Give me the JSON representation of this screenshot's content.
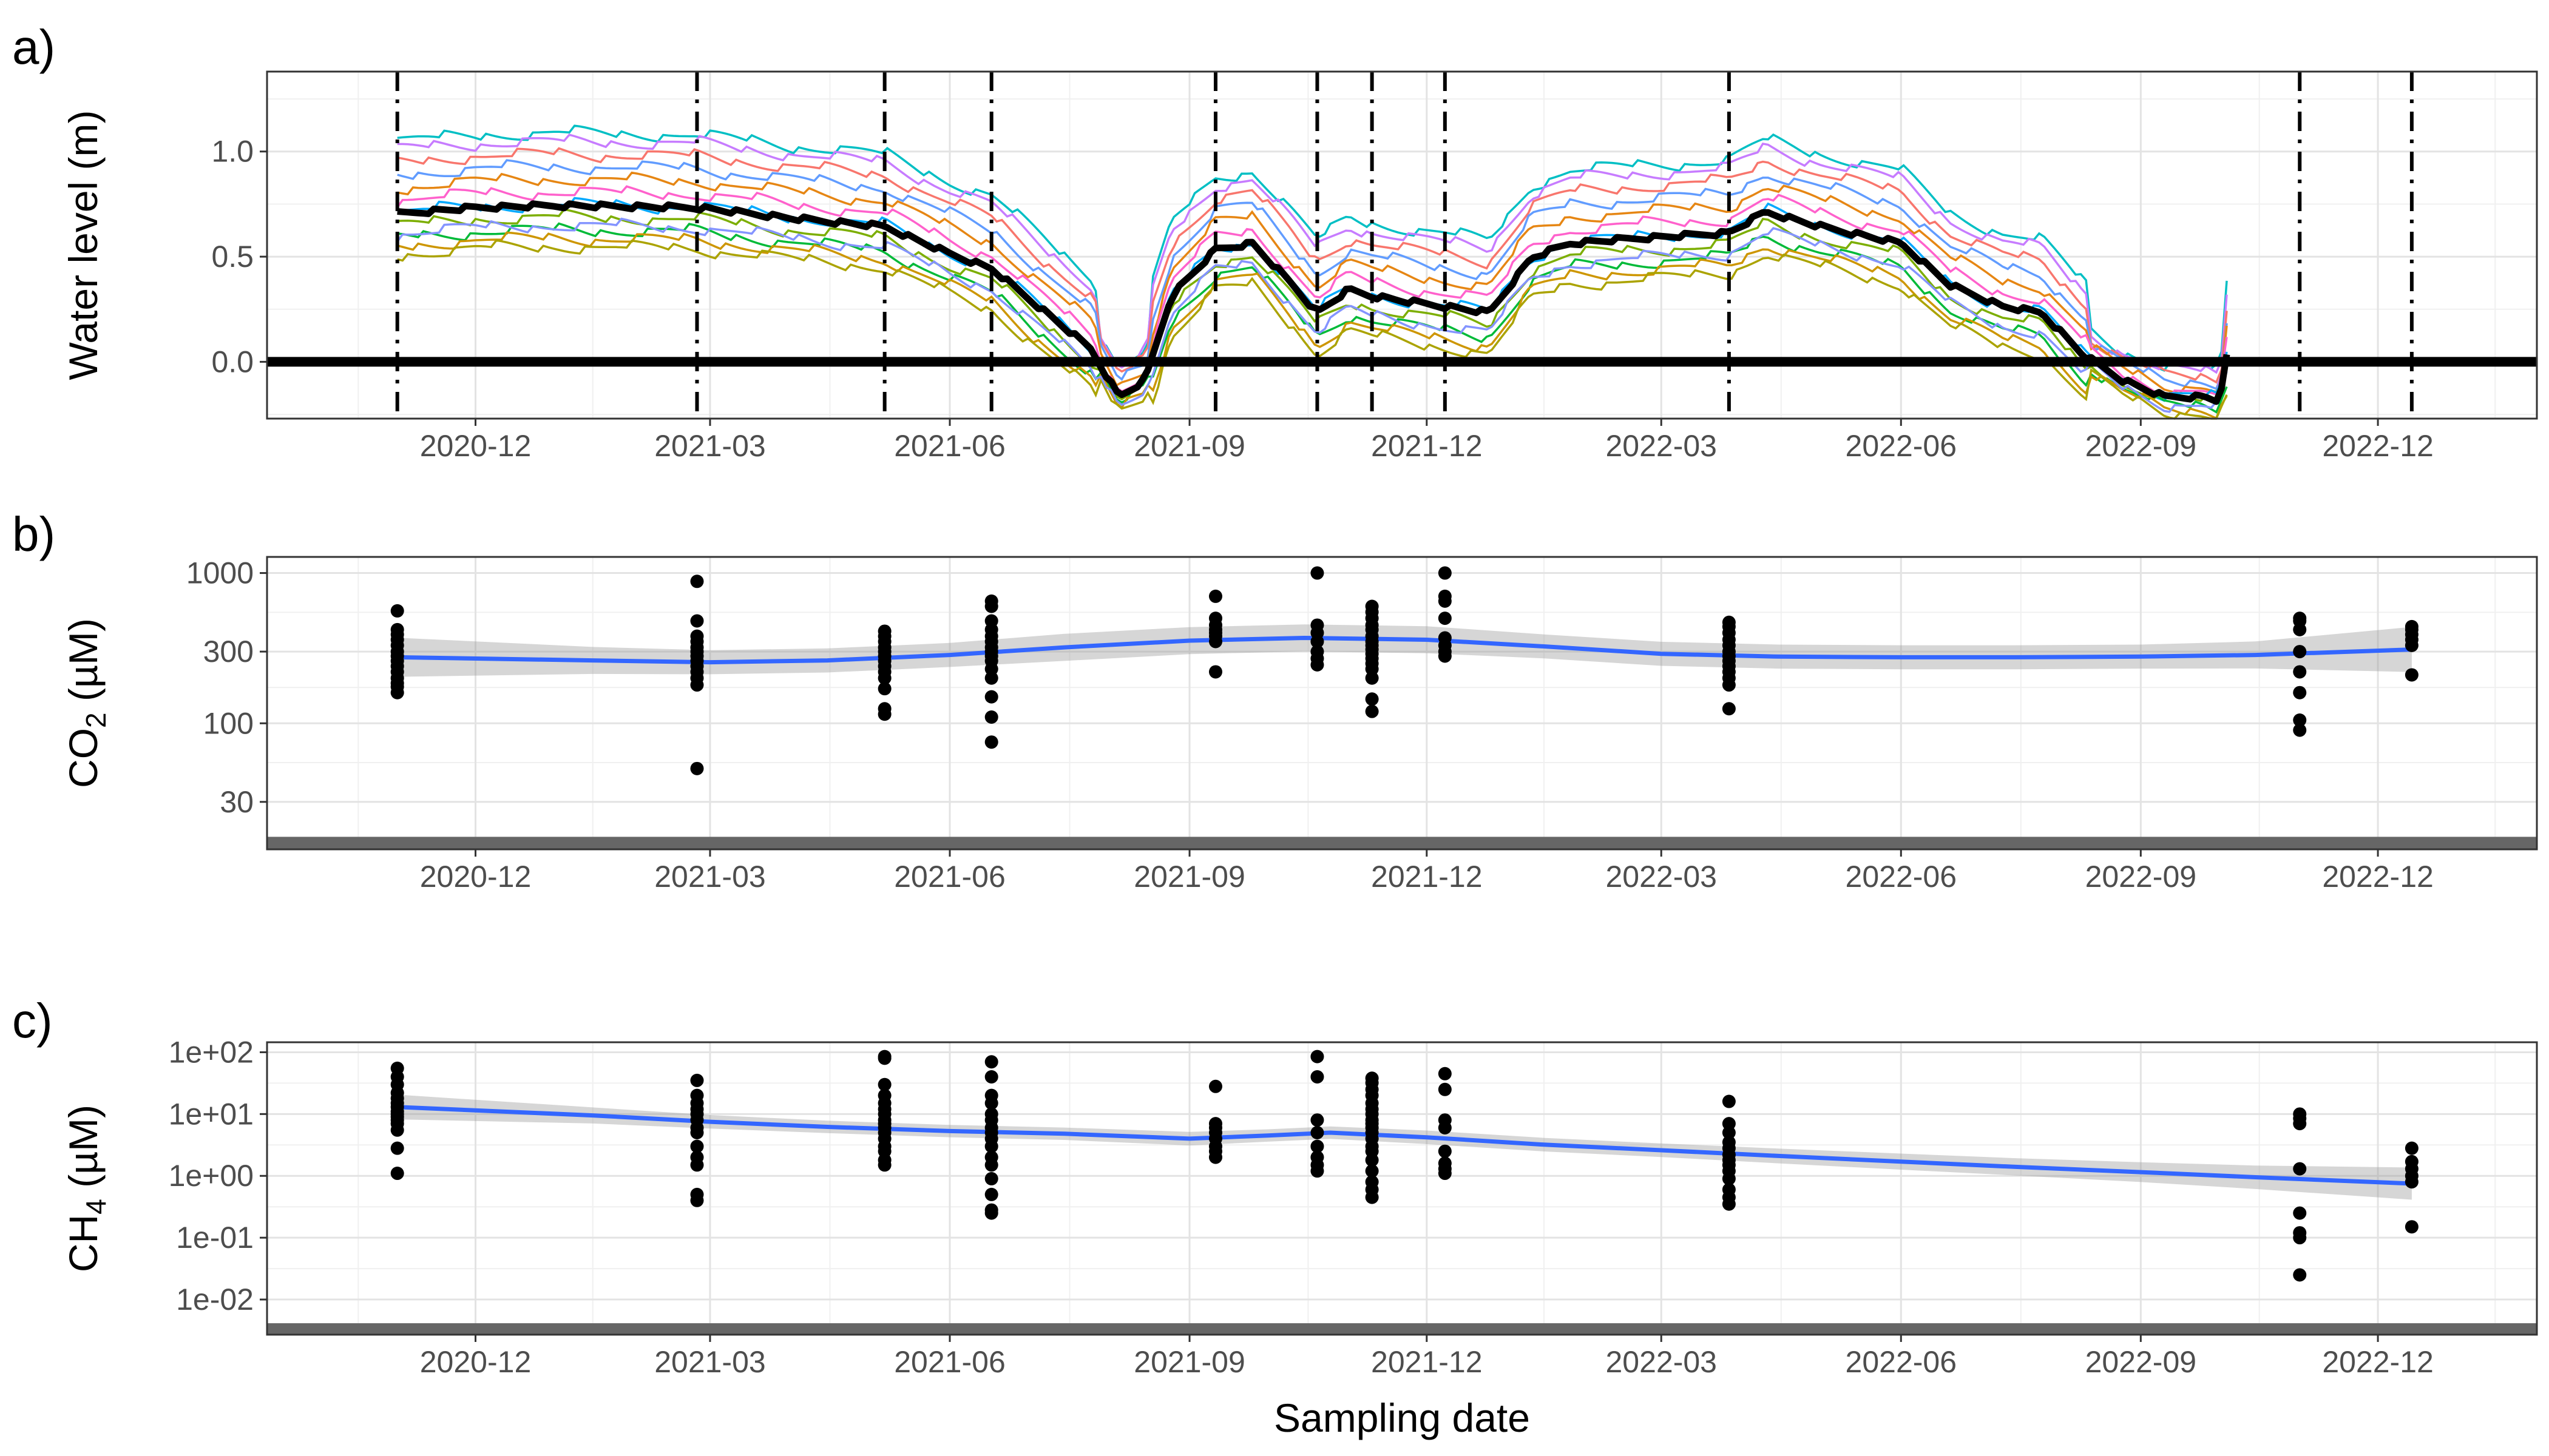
{
  "chart_data": [
    {
      "panel_label": "a)",
      "type": "line",
      "ylabel": "Water level (m)",
      "xlabel": "",
      "xlim": [
        "2020-09-12",
        "2023-01-31"
      ],
      "ylim": [
        -0.27,
        1.38
      ],
      "yticks": [
        0.0,
        0.5,
        1.0
      ],
      "ytick_labels": [
        "0.0",
        "0.5",
        "1.0"
      ],
      "xticks": [
        "2020-12-01",
        "2021-03-01",
        "2021-06-01",
        "2021-09-01",
        "2021-12-01",
        "2022-03-01",
        "2022-06-01",
        "2022-09-01",
        "2022-12-01"
      ],
      "xtick_labels": [
        "2020-12",
        "2021-03",
        "2021-06",
        "2021-09",
        "2021-12",
        "2022-03",
        "2022-06",
        "2022-09",
        "2022-12"
      ],
      "grid": true,
      "legend": "none",
      "zero_line": 0.0,
      "sampling_dates": [
        "2020-11-01",
        "2021-02-24",
        "2021-05-07",
        "2021-06-17",
        "2021-09-11",
        "2021-10-20",
        "2021-11-10",
        "2021-12-08",
        "2022-03-27",
        "2022-11-01",
        "2022-12-14"
      ],
      "mean_series": {
        "name": "",
        "color": "#000000",
        "x": [
          "2020-11-01",
          "2020-12-01",
          "2021-01-01",
          "2021-02-24",
          "2021-04-01",
          "2021-05-07",
          "2021-06-01",
          "2021-06-17",
          "2021-07-10",
          "2021-07-25",
          "2021-08-05",
          "2021-08-15",
          "2021-08-25",
          "2021-09-11",
          "2021-09-25",
          "2021-10-10",
          "2021-10-20",
          "2021-11-01",
          "2021-11-10",
          "2021-11-20",
          "2021-12-08",
          "2021-12-25",
          "2022-01-10",
          "2022-01-25",
          "2022-02-15",
          "2022-03-27",
          "2022-04-10",
          "2022-05-01",
          "2022-06-01",
          "2022-06-20",
          "2022-07-10",
          "2022-07-25",
          "2022-08-10",
          "2022-08-25",
          "2022-09-10",
          "2022-09-25",
          "2022-10-01",
          "2022-10-05"
        ],
        "values": [
          0.69,
          0.72,
          0.73,
          0.72,
          0.67,
          0.63,
          0.5,
          0.43,
          0.2,
          0.05,
          -0.18,
          -0.1,
          0.3,
          0.52,
          0.55,
          0.36,
          0.22,
          0.33,
          0.3,
          0.28,
          0.25,
          0.22,
          0.48,
          0.55,
          0.57,
          0.6,
          0.7,
          0.63,
          0.55,
          0.35,
          0.25,
          0.22,
          0.02,
          -0.1,
          -0.18,
          -0.18,
          -0.2,
          0.08
        ]
      },
      "well_series": [
        {
          "color": "#00BFC4",
          "offset": 0.34
        },
        {
          "color": "#C77CFF",
          "offset": 0.3
        },
        {
          "color": "#F8766D",
          "offset": 0.24
        },
        {
          "color": "#619CFF",
          "offset": 0.18
        },
        {
          "color": "#E68613",
          "offset": 0.12
        },
        {
          "color": "#FF61CC",
          "offset": 0.06
        },
        {
          "color": "#00A9FF",
          "offset": 0.0
        },
        {
          "color": "#7CAE00",
          "offset": -0.06
        },
        {
          "color": "#00BA38",
          "offset": -0.12
        },
        {
          "color": "#CD9600",
          "offset": -0.16
        },
        {
          "color": "#ABA300",
          "offset": -0.2
        },
        {
          "color": "#8494FF",
          "offset": -0.1
        }
      ]
    },
    {
      "panel_label": "b)",
      "type": "scatter",
      "ylabel_main": "CO",
      "ylabel_sub": "2",
      "ylabel_unit": " (µM)",
      "xlabel": "",
      "yscale": "log",
      "ylim": [
        14.5,
        1280
      ],
      "yticks": [
        30,
        100,
        300,
        1000
      ],
      "ytick_labels": [
        "30",
        "100",
        "300",
        "1000"
      ],
      "xlim": [
        "2020-09-12",
        "2023-01-31"
      ],
      "xticks": [
        "2020-12-01",
        "2021-03-01",
        "2021-06-01",
        "2021-09-01",
        "2021-12-01",
        "2022-03-01",
        "2022-06-01",
        "2022-09-01",
        "2022-12-01"
      ],
      "xtick_labels": [
        "2020-12",
        "2021-03",
        "2021-06",
        "2021-09",
        "2021-12",
        "2022-03",
        "2022-06",
        "2022-09",
        "2022-12"
      ],
      "grid": true,
      "legend": "none",
      "detection_line": 16,
      "points": [
        {
          "x": "2020-11-01",
          "values": [
            160,
            175,
            185,
            200,
            220,
            240,
            260,
            280,
            300,
            330,
            360,
            390,
            420,
            560
          ]
        },
        {
          "x": "2021-02-24",
          "values": [
            50,
            180,
            200,
            220,
            240,
            260,
            280,
            300,
            320,
            350,
            380,
            480,
            880
          ]
        },
        {
          "x": "2021-05-07",
          "values": [
            115,
            125,
            170,
            200,
            220,
            240,
            260,
            280,
            300,
            320,
            350,
            380,
            410
          ]
        },
        {
          "x": "2021-06-17",
          "values": [
            75,
            110,
            150,
            200,
            230,
            260,
            280,
            300,
            320,
            350,
            380,
            420,
            480,
            600,
            650
          ]
        },
        {
          "x": "2021-09-11",
          "values": [
            220,
            350,
            380,
            400,
            420,
            450,
            500,
            700
          ]
        },
        {
          "x": "2021-10-20",
          "values": [
            245,
            270,
            300,
            350,
            400,
            450,
            1000
          ]
        },
        {
          "x": "2021-11-10",
          "values": [
            120,
            145,
            200,
            230,
            250,
            270,
            290,
            310,
            330,
            350,
            380,
            420,
            450,
            500,
            550,
            600
          ]
        },
        {
          "x": "2021-12-08",
          "values": [
            280,
            300,
            330,
            370,
            500,
            650,
            700,
            1000
          ]
        },
        {
          "x": "2022-03-27",
          "values": [
            125,
            180,
            200,
            220,
            240,
            260,
            280,
            300,
            330,
            360,
            400,
            440,
            470
          ]
        },
        {
          "x": "2022-11-01",
          "values": [
            90,
            105,
            160,
            220,
            300,
            420,
            480,
            500
          ]
        },
        {
          "x": "2022-12-14",
          "values": [
            210,
            330,
            360,
            390,
            420,
            440
          ]
        }
      ],
      "trend": {
        "color": "#3366FF",
        "x": [
          "2020-11-01",
          "2021-01-15",
          "2021-03-01",
          "2021-04-15",
          "2021-06-01",
          "2021-07-15",
          "2021-09-01",
          "2021-10-15",
          "2021-12-01",
          "2022-01-15",
          "2022-03-01",
          "2022-04-15",
          "2022-06-01",
          "2022-07-15",
          "2022-09-01",
          "2022-10-15",
          "2022-12-14"
        ],
        "values": [
          275,
          262,
          255,
          262,
          285,
          320,
          355,
          370,
          360,
          325,
          290,
          278,
          275,
          275,
          278,
          285,
          310
        ],
        "band_width": [
          0.13,
          0.09,
          0.08,
          0.08,
          0.08,
          0.09,
          0.09,
          0.09,
          0.09,
          0.08,
          0.08,
          0.08,
          0.08,
          0.08,
          0.08,
          0.09,
          0.15
        ]
      }
    },
    {
      "panel_label": "c)",
      "type": "scatter",
      "ylabel_main": "CH",
      "ylabel_sub": "4",
      "ylabel_unit": " (µM)",
      "xlabel": "Sampling date",
      "yscale": "log",
      "ylim": [
        0.0027,
        145
      ],
      "yticks": [
        0.01,
        0.1,
        1,
        10,
        100
      ],
      "ytick_labels": [
        "1e-02",
        "1e-01",
        "1e+00",
        "1e+01",
        "1e+02"
      ],
      "xlim": [
        "2020-09-12",
        "2023-01-31"
      ],
      "xticks": [
        "2020-12-01",
        "2021-03-01",
        "2021-06-01",
        "2021-09-01",
        "2021-12-01",
        "2022-03-01",
        "2022-06-01",
        "2022-09-01",
        "2022-12-01"
      ],
      "xtick_labels": [
        "2020-12",
        "2021-03",
        "2021-06",
        "2021-09",
        "2021-12",
        "2022-03",
        "2022-06",
        "2022-09",
        "2022-12"
      ],
      "grid": true,
      "legend": "none",
      "detection_line": 0.0033,
      "points": [
        {
          "x": "2020-11-01",
          "values": [
            1.1,
            2.8,
            5.5,
            7,
            8,
            9,
            10,
            11,
            13,
            15,
            18,
            22,
            30,
            40,
            55
          ]
        },
        {
          "x": "2021-02-24",
          "values": [
            0.4,
            0.5,
            1.5,
            2,
            3,
            5,
            6,
            8,
            10,
            12,
            15,
            20,
            35
          ]
        },
        {
          "x": "2021-05-07",
          "values": [
            1.5,
            1.8,
            2.5,
            3,
            4,
            5,
            6,
            7,
            8,
            10,
            12,
            15,
            20,
            30,
            80,
            85
          ]
        },
        {
          "x": "2021-06-17",
          "values": [
            0.25,
            0.28,
            0.5,
            0.9,
            1.5,
            2,
            3,
            4,
            5,
            6,
            8,
            10,
            15,
            20,
            40,
            70
          ]
        },
        {
          "x": "2021-09-11",
          "values": [
            2,
            2.5,
            3,
            4,
            5,
            6,
            7,
            28
          ]
        },
        {
          "x": "2021-10-20",
          "values": [
            1.2,
            1.5,
            2,
            3,
            5,
            8,
            40,
            85
          ]
        },
        {
          "x": "2021-11-10",
          "values": [
            0.45,
            0.6,
            0.8,
            1.2,
            1.8,
            2.5,
            3,
            4,
            5,
            6,
            7,
            8,
            10,
            12,
            15,
            20,
            25,
            32,
            38
          ]
        },
        {
          "x": "2021-12-08",
          "values": [
            1.1,
            1.3,
            1.6,
            2.5,
            6,
            8,
            25,
            45
          ]
        },
        {
          "x": "2022-03-27",
          "values": [
            0.35,
            0.45,
            0.6,
            0.9,
            1.2,
            1.5,
            1.8,
            2.2,
            2.8,
            3.5,
            5,
            7,
            16
          ]
        },
        {
          "x": "2022-11-01",
          "values": [
            0.025,
            0.1,
            0.12,
            0.25,
            1.3,
            7,
            8.5,
            10
          ]
        },
        {
          "x": "2022-12-14",
          "values": [
            0.15,
            0.8,
            1,
            1.3,
            1.7,
            2.8
          ]
        }
      ],
      "trend": {
        "color": "#3366FF",
        "x": [
          "2020-11-01",
          "2021-01-15",
          "2021-03-01",
          "2021-04-15",
          "2021-06-01",
          "2021-07-15",
          "2021-09-01",
          "2021-10-01",
          "2021-10-25",
          "2021-12-01",
          "2022-01-15",
          "2022-03-01",
          "2022-04-15",
          "2022-06-01",
          "2022-07-15",
          "2022-09-01",
          "2022-10-15",
          "2022-12-14"
        ],
        "values": [
          13,
          9.5,
          7.5,
          6.2,
          5.3,
          4.8,
          4.0,
          4.5,
          5.0,
          4.2,
          3.2,
          2.6,
          2.1,
          1.7,
          1.4,
          1.15,
          0.95,
          0.75
        ],
        "band_width": [
          0.2,
          0.13,
          0.11,
          0.1,
          0.1,
          0.1,
          0.11,
          0.1,
          0.1,
          0.11,
          0.11,
          0.11,
          0.12,
          0.13,
          0.14,
          0.16,
          0.19,
          0.26
        ]
      }
    }
  ]
}
